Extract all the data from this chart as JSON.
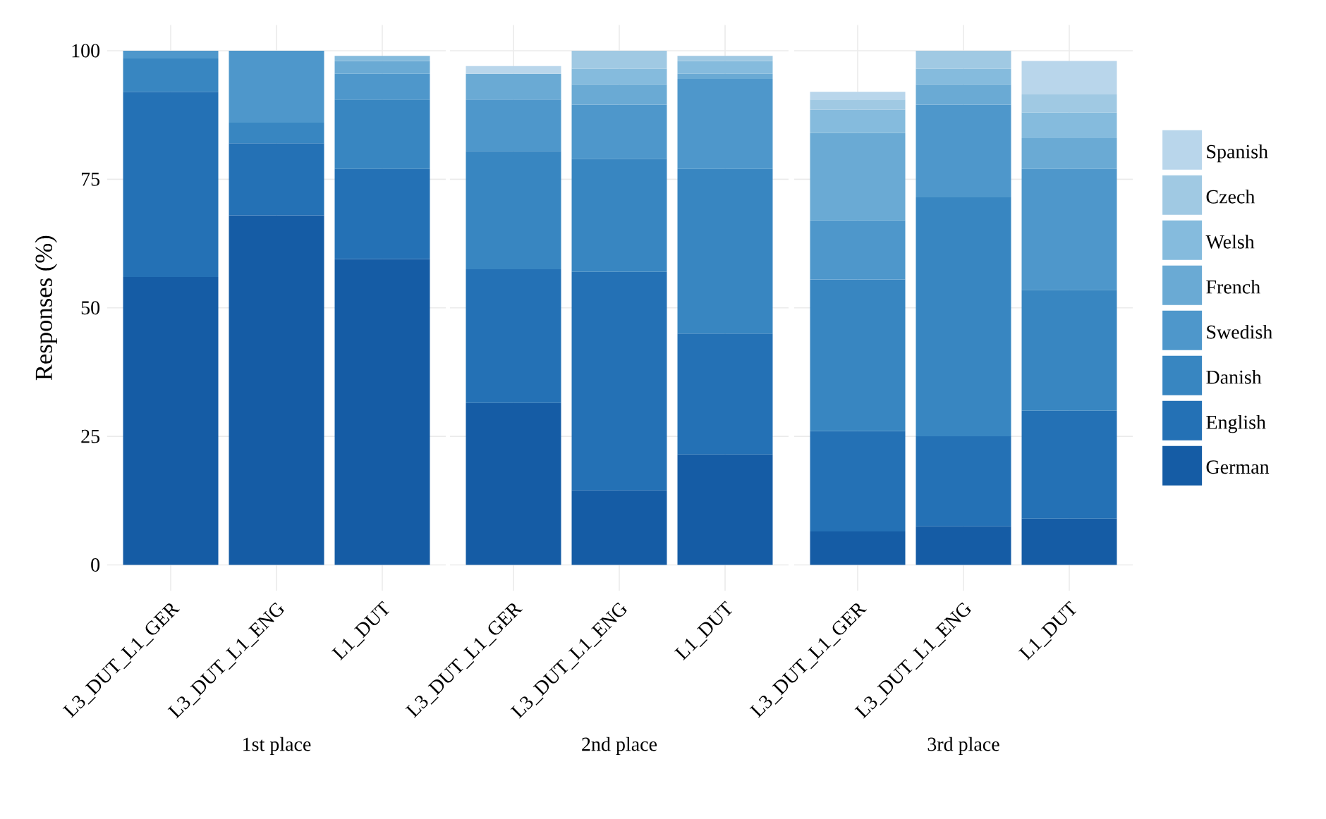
{
  "chart_data": [
    {
      "type": "bar",
      "stacked": true,
      "xlabel": "1st place",
      "ylabel": "Responses (%)",
      "categories": [
        "L3_DUT_L1_GER",
        "L3_DUT_L1_ENG",
        "L1_DUT"
      ],
      "ylim": [
        -5,
        105
      ],
      "yticks": [
        0,
        25,
        50,
        75,
        100
      ],
      "grid": true,
      "legend": false,
      "series": [
        {
          "color": "#155ca5",
          "values": [
            56,
            68,
            59.5
          ]
        },
        {
          "color": "#2471b5",
          "values": [
            36,
            14,
            17.5
          ]
        },
        {
          "color": "#3886c1",
          "values": [
            6.5,
            4,
            13.5
          ]
        },
        {
          "color": "#4e97cb",
          "values": [
            1.5,
            14,
            5
          ]
        },
        {
          "color": "#6aaad4",
          "values": [
            null,
            null,
            2.5
          ]
        },
        {
          "color": "#85bbdd",
          "values": [
            null,
            null,
            1
          ]
        },
        {
          "color": "#a0c9e3",
          "values": [
            null,
            null,
            null
          ]
        },
        {
          "color": "#b9d6eb",
          "values": [
            null,
            null,
            null
          ]
        }
      ]
    },
    {
      "type": "bar",
      "stacked": true,
      "xlabel": "2nd place",
      "categories": [
        "L3_DUT_L1_GER",
        "L3_DUT_L1_ENG",
        "L1_DUT"
      ],
      "ylim": [
        -5,
        105
      ],
      "yticks": [
        0,
        25,
        50,
        75,
        100
      ],
      "grid": true,
      "legend": false,
      "tick_labels": "x",
      "series": [
        {
          "color": "#155ca5",
          "values": [
            31.5,
            14.5,
            21.5
          ]
        },
        {
          "color": "#2471b5",
          "values": [
            26,
            42.5,
            23.5
          ]
        },
        {
          "color": "#3886c1",
          "values": [
            23,
            22,
            32
          ]
        },
        {
          "color": "#4e97cb",
          "values": [
            10,
            10.5,
            17.5
          ]
        },
        {
          "color": "#6aaad4",
          "values": [
            5,
            4,
            1
          ]
        },
        {
          "color": "#85bbdd",
          "values": [
            null,
            3,
            2.5
          ]
        },
        {
          "color": "#a0c9e3",
          "values": [
            null,
            3.5,
            1
          ]
        },
        {
          "color": "#b9d6eb",
          "values": [
            1.5,
            null,
            null
          ]
        }
      ]
    },
    {
      "type": "bar",
      "stacked": true,
      "xlabel": "3rd place",
      "categories": [
        "L3_DUT_L1_GER",
        "L3_DUT_L1_ENG",
        "L1_DUT"
      ],
      "ylim": [
        -5,
        105
      ],
      "yticks": [
        0,
        25,
        50,
        75,
        100
      ],
      "grid": true,
      "legend": "right",
      "tick_labels": "x",
      "series": [
        {
          "name": "German",
          "color": "#155ca5",
          "values": [
            6.5,
            7.5,
            9
          ]
        },
        {
          "name": "English",
          "color": "#2471b5",
          "values": [
            19.5,
            17.5,
            21
          ]
        },
        {
          "name": "Danish",
          "color": "#3886c1",
          "values": [
            29.5,
            46.5,
            23.5
          ]
        },
        {
          "name": "Swedish",
          "color": "#4e97cb",
          "values": [
            11.5,
            18,
            23.5
          ]
        },
        {
          "name": "French",
          "color": "#6aaad4",
          "values": [
            17,
            4,
            6
          ]
        },
        {
          "name": "Welsh",
          "color": "#85bbdd",
          "values": [
            4.5,
            3,
            5
          ]
        },
        {
          "name": "Czech",
          "color": "#a0c9e3",
          "values": [
            2,
            3.5,
            3.5
          ]
        },
        {
          "name": "Spanish",
          "color": "#b9d6eb",
          "values": [
            1.5,
            null,
            6.5
          ]
        }
      ]
    }
  ]
}
